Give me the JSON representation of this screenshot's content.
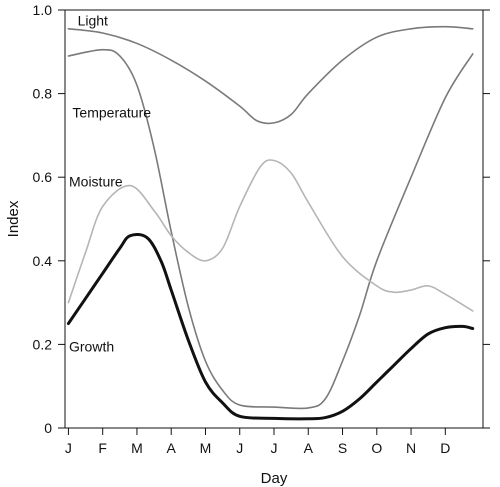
{
  "chart_data": {
    "type": "line",
    "title": "",
    "xlabel": "Day",
    "ylabel": "Index",
    "x": [
      0,
      1,
      2,
      3,
      4,
      5,
      6,
      7,
      8,
      9,
      10,
      11
    ],
    "xticklabels": [
      "J",
      "F",
      "M",
      "A",
      "M",
      "J",
      "J",
      "A",
      "S",
      "O",
      "N",
      "D"
    ],
    "xlim": [
      -0.1,
      12.1
    ],
    "ylim": [
      0,
      1.0
    ],
    "yticks": [
      0,
      0.2,
      0.4,
      0.6,
      0.8,
      1.0
    ],
    "ytick_labels": [
      "0",
      "0.2",
      "0.4",
      "0.6",
      "0.8",
      "1.0"
    ],
    "grid": false,
    "legend": "none",
    "series": [
      {
        "name": "Light",
        "color": "#7a7a7a",
        "width": 1.6,
        "points": [
          [
            0,
            0.955
          ],
          [
            1,
            0.945
          ],
          [
            2,
            0.92
          ],
          [
            3,
            0.88
          ],
          [
            4,
            0.83
          ],
          [
            5,
            0.77
          ],
          [
            5.5,
            0.735
          ],
          [
            6,
            0.73
          ],
          [
            6.5,
            0.75
          ],
          [
            7,
            0.8
          ],
          [
            8,
            0.88
          ],
          [
            9,
            0.935
          ],
          [
            10,
            0.955
          ],
          [
            11,
            0.96
          ],
          [
            11.8,
            0.955
          ]
        ]
      },
      {
        "name": "Temperature",
        "color": "#7a7a7a",
        "width": 1.6,
        "points": [
          [
            0,
            0.89
          ],
          [
            1,
            0.905
          ],
          [
            1.5,
            0.89
          ],
          [
            2,
            0.82
          ],
          [
            2.5,
            0.67
          ],
          [
            3,
            0.47
          ],
          [
            3.5,
            0.29
          ],
          [
            4,
            0.16
          ],
          [
            4.5,
            0.09
          ],
          [
            5,
            0.055
          ],
          [
            6,
            0.05
          ],
          [
            7,
            0.048
          ],
          [
            7.5,
            0.07
          ],
          [
            8,
            0.16
          ],
          [
            8.5,
            0.27
          ],
          [
            9,
            0.4
          ],
          [
            10,
            0.6
          ],
          [
            11,
            0.79
          ],
          [
            11.8,
            0.895
          ]
        ]
      },
      {
        "name": "Moisture",
        "color": "#b5b5b5",
        "width": 1.6,
        "points": [
          [
            0,
            0.3
          ],
          [
            0.5,
            0.42
          ],
          [
            1,
            0.53
          ],
          [
            1.8,
            0.58
          ],
          [
            2.5,
            0.52
          ],
          [
            3,
            0.46
          ],
          [
            3.5,
            0.42
          ],
          [
            4,
            0.4
          ],
          [
            4.5,
            0.43
          ],
          [
            5,
            0.53
          ],
          [
            5.6,
            0.625
          ],
          [
            6,
            0.64
          ],
          [
            6.5,
            0.61
          ],
          [
            7,
            0.54
          ],
          [
            8,
            0.41
          ],
          [
            9,
            0.34
          ],
          [
            9.5,
            0.325
          ],
          [
            10,
            0.33
          ],
          [
            10.5,
            0.34
          ],
          [
            11,
            0.32
          ],
          [
            11.8,
            0.28
          ]
        ]
      },
      {
        "name": "Growth",
        "color": "#111111",
        "width": 3,
        "points": [
          [
            0,
            0.25
          ],
          [
            0.5,
            0.31
          ],
          [
            1,
            0.37
          ],
          [
            1.5,
            0.43
          ],
          [
            1.8,
            0.46
          ],
          [
            2.3,
            0.455
          ],
          [
            2.7,
            0.4
          ],
          [
            3,
            0.33
          ],
          [
            3.5,
            0.21
          ],
          [
            4,
            0.11
          ],
          [
            4.5,
            0.06
          ],
          [
            5,
            0.028
          ],
          [
            6,
            0.023
          ],
          [
            7,
            0.022
          ],
          [
            7.5,
            0.025
          ],
          [
            8,
            0.04
          ],
          [
            8.5,
            0.07
          ],
          [
            9,
            0.11
          ],
          [
            9.5,
            0.15
          ],
          [
            10,
            0.19
          ],
          [
            10.5,
            0.225
          ],
          [
            11,
            0.24
          ],
          [
            11.5,
            0.243
          ],
          [
            11.8,
            0.238
          ]
        ]
      }
    ],
    "annotations": [
      {
        "series": "Light",
        "text": "Light",
        "x": 0.15,
        "y": 0.975,
        "anchor": "start"
      },
      {
        "series": "Temperature",
        "text": "Temperature",
        "x": 0.0,
        "y": 0.755,
        "anchor": "start"
      },
      {
        "series": "Moisture",
        "text": "Moisture",
        "x": -0.1,
        "y": 0.59,
        "anchor": "start"
      },
      {
        "series": "Growth",
        "text": "Growth",
        "x": -0.1,
        "y": 0.195,
        "anchor": "start"
      }
    ]
  }
}
